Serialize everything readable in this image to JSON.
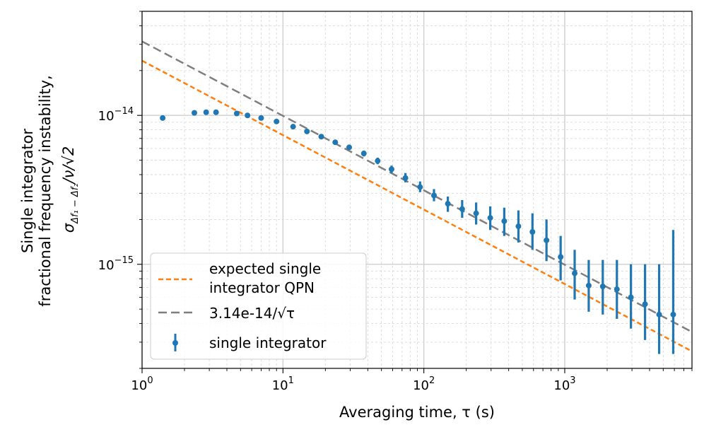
{
  "chart_data": {
    "type": "scatter",
    "xscale": "log",
    "yscale": "log",
    "xlim": [
      1,
      8000
    ],
    "ylim": [
      2e-16,
      5e-14
    ],
    "grid": true,
    "xlabel": "Averaging time, τ (s)",
    "ylabel_lines": [
      "Single integrator",
      "fractional frequency instability,"
    ],
    "ylabel_math": "σ_{Δf1−Δf2}/ν/√2",
    "x_ticks": [
      {
        "value": 1,
        "base": "10",
        "exp": "0"
      },
      {
        "value": 10,
        "base": "10",
        "exp": "1"
      },
      {
        "value": 100,
        "base": "10",
        "exp": "2"
      },
      {
        "value": 1000,
        "base": "10",
        "exp": "3"
      }
    ],
    "y_ticks": [
      {
        "value": 1e-15,
        "base": "10",
        "exp": "−15"
      },
      {
        "value": 1e-14,
        "base": "10",
        "exp": "−14"
      }
    ],
    "legend_position": "lower-left",
    "series": [
      {
        "name": "expected single integrator QPN",
        "legend_lines": [
          "expected single",
          "integrator QPN"
        ],
        "type": "line",
        "style": "dashed",
        "color": "#ff7f0e",
        "coefficient": 2.33e-14,
        "exponent": -0.5
      },
      {
        "name": "3.14e-14/√τ",
        "legend_lines": [
          "3.14e-14/√τ"
        ],
        "type": "line",
        "style": "dashed",
        "color": "#7f7f7f",
        "coefficient": 3.14e-14,
        "exponent": -0.5
      },
      {
        "name": "single integrator",
        "legend_lines": [
          "single integrator"
        ],
        "type": "errorbar",
        "color": "#1f77b4",
        "points": [
          {
            "x": 1.4,
            "y": 9.6e-15,
            "lo": 9.6e-15,
            "hi": 9.6e-15
          },
          {
            "x": 2.35,
            "y": 1.04e-14,
            "lo": 1.04e-14,
            "hi": 1.04e-14
          },
          {
            "x": 2.85,
            "y": 1.05e-14,
            "lo": 1.05e-14,
            "hi": 1.05e-14
          },
          {
            "x": 3.35,
            "y": 1.05e-14,
            "lo": 1.05e-14,
            "hi": 1.05e-14
          },
          {
            "x": 4.7,
            "y": 1.03e-14,
            "lo": 1.03e-14,
            "hi": 1.03e-14
          },
          {
            "x": 5.6,
            "y": 1e-14,
            "lo": 1e-14,
            "hi": 1e-14
          },
          {
            "x": 7.0,
            "y": 9.6e-15,
            "lo": 9.5e-15,
            "hi": 9.7e-15
          },
          {
            "x": 9.0,
            "y": 9.1e-15,
            "lo": 9e-15,
            "hi": 9.2e-15
          },
          {
            "x": 11.8,
            "y": 8.4e-15,
            "lo": 8.2e-15,
            "hi": 8.6e-15
          },
          {
            "x": 14.8,
            "y": 7.8e-15,
            "lo": 7.6e-15,
            "hi": 8e-15
          },
          {
            "x": 18.7,
            "y": 7.2e-15,
            "lo": 7e-15,
            "hi": 7.4e-15
          },
          {
            "x": 23.5,
            "y": 6.6e-15,
            "lo": 6.4e-15,
            "hi": 6.8e-15
          },
          {
            "x": 29.5,
            "y": 6.1e-15,
            "lo": 5.9e-15,
            "hi": 6.3e-15
          },
          {
            "x": 37.5,
            "y": 5.55e-15,
            "lo": 5.3e-15,
            "hi": 5.8e-15
          },
          {
            "x": 47.0,
            "y": 4.95e-15,
            "lo": 4.7e-15,
            "hi": 5.2e-15
          },
          {
            "x": 59.0,
            "y": 4.35e-15,
            "lo": 4.1e-15,
            "hi": 4.6e-15
          },
          {
            "x": 74.0,
            "y": 3.8e-15,
            "lo": 3.55e-15,
            "hi": 4.1e-15
          },
          {
            "x": 94.0,
            "y": 3.3e-15,
            "lo": 3.05e-15,
            "hi": 3.6e-15
          },
          {
            "x": 118.0,
            "y": 2.9e-15,
            "lo": 2.65e-15,
            "hi": 3.2e-15
          },
          {
            "x": 148.0,
            "y": 2.55e-15,
            "lo": 2.25e-15,
            "hi": 2.85e-15
          },
          {
            "x": 187.0,
            "y": 2.35e-15,
            "lo": 2.05e-15,
            "hi": 2.7e-15
          },
          {
            "x": 235.0,
            "y": 2.2e-15,
            "lo": 1.85e-15,
            "hi": 2.6e-15
          },
          {
            "x": 296.0,
            "y": 2.05e-15,
            "lo": 1.7e-15,
            "hi": 2.45e-15
          },
          {
            "x": 372.0,
            "y": 1.95e-15,
            "lo": 1.55e-15,
            "hi": 2.4e-15
          },
          {
            "x": 469.0,
            "y": 1.8e-15,
            "lo": 1.4e-15,
            "hi": 2.3e-15
          },
          {
            "x": 590.0,
            "y": 1.65e-15,
            "lo": 1.25e-15,
            "hi": 2.2e-15
          },
          {
            "x": 742.0,
            "y": 1.45e-15,
            "lo": 1.05e-15,
            "hi": 2e-15
          },
          {
            "x": 935.0,
            "y": 1.12e-15,
            "lo": 7.8e-16,
            "hi": 1.55e-15
          },
          {
            "x": 1176.0,
            "y": 8.7e-16,
            "lo": 5.8e-16,
            "hi": 1.25e-15
          },
          {
            "x": 1480.0,
            "y": 7.2e-16,
            "lo": 4.8e-16,
            "hi": 1.07e-15
          },
          {
            "x": 1862.0,
            "y": 7.1e-16,
            "lo": 4.6e-16,
            "hi": 1.07e-15
          },
          {
            "x": 2345.0,
            "y": 6.8e-16,
            "lo": 4.3e-16,
            "hi": 1.07e-15
          },
          {
            "x": 2950.0,
            "y": 6e-16,
            "lo": 3.7e-16,
            "hi": 1e-15
          },
          {
            "x": 3715.0,
            "y": 5.4e-16,
            "lo": 3.1e-16,
            "hi": 1e-15
          },
          {
            "x": 4677.0,
            "y": 4.6e-16,
            "lo": 2.5e-16,
            "hi": 1e-15
          },
          {
            "x": 5888.0,
            "y": 4.6e-16,
            "lo": 2.5e-16,
            "hi": 1.7e-15
          }
        ]
      }
    ]
  }
}
